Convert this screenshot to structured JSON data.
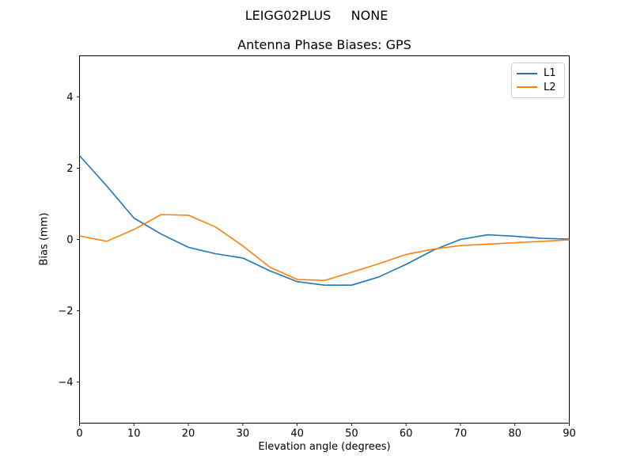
{
  "figure": {
    "suptitle": "LEIGG02PLUS     NONE"
  },
  "chart_data": {
    "type": "line",
    "title": "Antenna Phase Biases: GPS",
    "xlabel": "Elevation angle (degrees)",
    "ylabel": "Bias (mm)",
    "xlim": [
      0,
      90
    ],
    "ylim": [
      -5.15,
      5.15
    ],
    "xticks": [
      0,
      10,
      20,
      30,
      40,
      50,
      60,
      70,
      80,
      90
    ],
    "yticks": [
      -4,
      -2,
      0,
      2,
      4
    ],
    "grid": false,
    "legend_position": "upper right",
    "x": [
      0,
      5,
      10,
      15,
      20,
      25,
      30,
      35,
      40,
      45,
      50,
      55,
      60,
      65,
      70,
      75,
      80,
      85,
      90
    ],
    "series": [
      {
        "name": "L1",
        "color": "#1f77b4",
        "values": [
          2.35,
          1.5,
          0.6,
          0.15,
          -0.22,
          -0.4,
          -0.52,
          -0.88,
          -1.18,
          -1.28,
          -1.28,
          -1.05,
          -0.7,
          -0.3,
          0.0,
          0.13,
          0.09,
          0.03,
          0.01
        ]
      },
      {
        "name": "L2",
        "color": "#ff7f0e",
        "values": [
          0.1,
          -0.05,
          0.28,
          0.7,
          0.68,
          0.35,
          -0.18,
          -0.78,
          -1.12,
          -1.15,
          -0.92,
          -0.68,
          -0.42,
          -0.27,
          -0.17,
          -0.13,
          -0.09,
          -0.05,
          -0.01
        ]
      }
    ]
  }
}
